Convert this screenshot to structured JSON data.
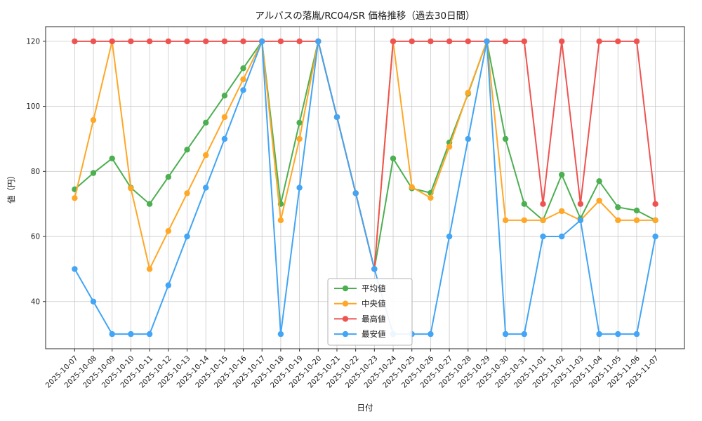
{
  "chart_data": {
    "type": "line",
    "title": "アルバスの落胤/RC04/SR 価格推移（過去30日間）",
    "xlabel": "日付",
    "ylabel": "値（円）",
    "ylim": [
      25.5,
      124.5
    ],
    "yticks": [
      40,
      60,
      80,
      100,
      120
    ],
    "grid": true,
    "legend_position": "lower-center",
    "x": [
      "2025-10-07",
      "2025-10-08",
      "2025-10-09",
      "2025-10-10",
      "2025-10-11",
      "2025-10-12",
      "2025-10-13",
      "2025-10-14",
      "2025-10-15",
      "2025-10-16",
      "2025-10-17",
      "2025-10-18",
      "2025-10-19",
      "2025-10-20",
      "2025-10-21",
      "2025-10-22",
      "2025-10-23",
      "2025-10-24",
      "2025-10-25",
      "2025-10-26",
      "2025-10-27",
      "2025-10-28",
      "2025-10-29",
      "2025-10-30",
      "2025-10-31",
      "2025-11-01",
      "2025-11-02",
      "2025-11-03",
      "2025-11-04",
      "2025-11-05",
      "2025-11-06",
      "2025-11-07"
    ],
    "series": [
      {
        "name": "平均値",
        "id": "average",
        "color": "#4caf50",
        "values": [
          74.5,
          79.5,
          84,
          75,
          70,
          78.3,
          86.7,
          95,
          103.3,
          111.7,
          120,
          70,
          95,
          120,
          96.7,
          73.3,
          50,
          84,
          74.8,
          73.4,
          88.9,
          103.9,
          120,
          90,
          70,
          65,
          79,
          65.5,
          77,
          69,
          68,
          65
        ]
      },
      {
        "name": "中央値",
        "id": "median",
        "color": "#ffa726",
        "values": [
          71.8,
          95.8,
          120,
          74.8,
          50,
          61.7,
          73.3,
          85,
          96.7,
          108.3,
          120,
          65,
          90,
          120,
          96.7,
          73.3,
          50,
          120,
          75.2,
          71.9,
          87.6,
          104.2,
          120,
          65,
          65,
          65,
          67.8,
          65,
          71,
          65,
          65,
          65
        ]
      },
      {
        "name": "最高値",
        "id": "max",
        "color": "#ef5350",
        "values": [
          120,
          120,
          120,
          120,
          120,
          120,
          120,
          120,
          120,
          120,
          120,
          120,
          120,
          120,
          96.7,
          73.3,
          50,
          120,
          120,
          120,
          120,
          120,
          120,
          120,
          120,
          70,
          120,
          70,
          120,
          120,
          120,
          70
        ]
      },
      {
        "name": "最安値",
        "id": "min",
        "color": "#42a5f5",
        "values": [
          50,
          40,
          30,
          30,
          30,
          45,
          60,
          75,
          90,
          105,
          120,
          30,
          75,
          120,
          96.7,
          73.3,
          50,
          30,
          30,
          30,
          60,
          90,
          120,
          30,
          30,
          60,
          60,
          65,
          30,
          30,
          30,
          60
        ]
      }
    ]
  }
}
